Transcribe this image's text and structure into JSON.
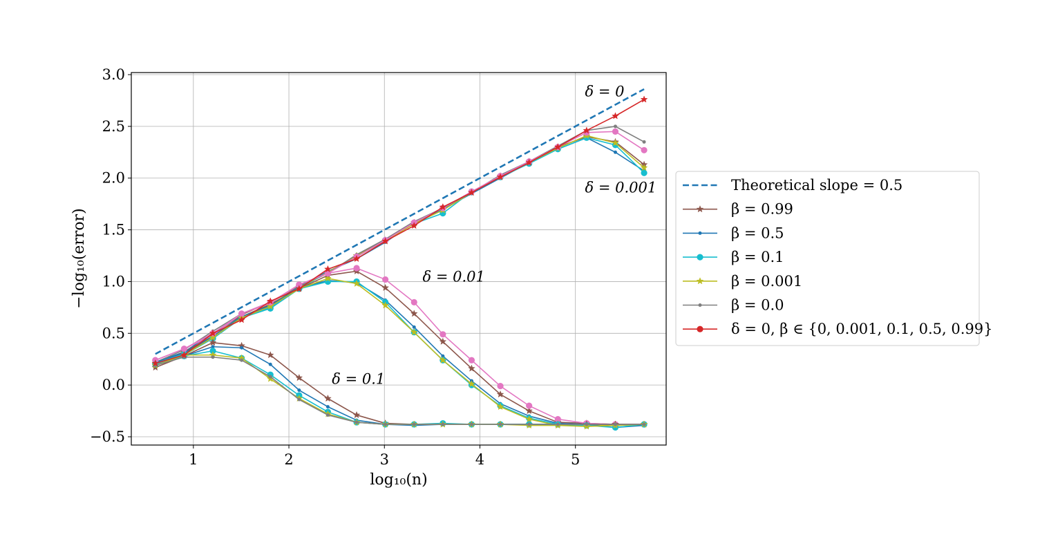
{
  "chart_data": {
    "type": "line",
    "title": "",
    "xlabel": "log₁₀(n)",
    "ylabel": "−log₁₀(error)",
    "xlim": [
      0.35,
      5.95
    ],
    "ylim": [
      -0.58,
      3.02
    ],
    "x_ticks": [
      1,
      2,
      3,
      4,
      5
    ],
    "x_tick_labels": [
      "1",
      "2",
      "3",
      "4",
      "5"
    ],
    "y_ticks": [
      -0.5,
      0.0,
      0.5,
      1.0,
      1.5,
      2.0,
      2.5,
      3.0
    ],
    "y_tick_labels": [
      "−0.5",
      "0.0",
      "0.5",
      "1.0",
      "1.5",
      "2.0",
      "2.5",
      "3.0"
    ],
    "grid": true,
    "legend_position": "right-outside",
    "x": [
      0.602,
      0.903,
      1.204,
      1.505,
      1.806,
      2.107,
      2.408,
      2.709,
      3.01,
      3.311,
      3.612,
      3.913,
      4.214,
      4.515,
      4.816,
      5.117,
      5.418,
      5.719
    ],
    "theoretical": {
      "name": "Theoretical slope = 0.5",
      "color": "#1f77b4",
      "x": [
        0.602,
        5.719
      ],
      "values": [
        0.3,
        2.86
      ]
    },
    "legend": [
      {
        "label": "Theoretical slope = 0.5",
        "color": "#1f77b4",
        "style": "dashed",
        "marker": "none"
      },
      {
        "label": "β = 0.99",
        "color": "#8c564b",
        "style": "solid",
        "marker": "star"
      },
      {
        "label": "β = 0.5",
        "color": "#1f77b4",
        "style": "solid",
        "marker": "dot"
      },
      {
        "label": "β = 0.1",
        "color": "#17becf",
        "style": "solid",
        "marker": "circle"
      },
      {
        "label": "β = 0.001",
        "color": "#bcbd22",
        "style": "solid",
        "marker": "star"
      },
      {
        "label": "β = 0.0",
        "color": "#7f7f7f",
        "style": "solid",
        "marker": "dot"
      },
      {
        "label": "δ = 0,  β ∈ {0, 0.001, 0.1, 0.5, 0.99}",
        "color": "#d62728",
        "style": "solid",
        "marker": "circle"
      }
    ],
    "annotations": [
      {
        "text": "δ = 0",
        "x": 5.1,
        "y": 2.79
      },
      {
        "text": "δ = 0.001",
        "x": 5.1,
        "y": 1.86
      },
      {
        "text": "δ = 0.01",
        "x": 3.4,
        "y": 1.0
      },
      {
        "text": "δ = 0.1",
        "x": 2.45,
        "y": 0.01
      }
    ],
    "series": [
      {
        "group": "δ = 0.001",
        "name": "β = 0.99",
        "color": "#8c564b",
        "marker": "star",
        "values": [
          0.2,
          0.3,
          0.47,
          0.68,
          0.8,
          0.95,
          1.08,
          1.25,
          1.4,
          1.57,
          1.7,
          1.86,
          2.02,
          2.16,
          2.3,
          2.4,
          2.35,
          2.13
        ]
      },
      {
        "group": "δ = 0.001",
        "name": "β = 0.5",
        "color": "#1f77b4",
        "marker": "dot",
        "values": [
          0.22,
          0.32,
          0.5,
          0.66,
          0.77,
          0.95,
          1.1,
          1.22,
          1.38,
          1.57,
          1.7,
          1.85,
          2.0,
          2.15,
          2.28,
          2.39,
          2.25,
          2.07
        ]
      },
      {
        "group": "δ = 0.001",
        "name": "β = 0.1",
        "color": "#17becf",
        "marker": "circle",
        "values": [
          0.21,
          0.29,
          0.45,
          0.65,
          0.74,
          0.93,
          1.09,
          1.24,
          1.4,
          1.56,
          1.66,
          1.87,
          2.01,
          2.14,
          2.28,
          2.39,
          2.32,
          2.05
        ]
      },
      {
        "group": "δ = 0.001",
        "name": "β = 0.001",
        "color": "#bcbd22",
        "marker": "star",
        "values": [
          0.2,
          0.31,
          0.48,
          0.66,
          0.78,
          0.94,
          1.09,
          1.25,
          1.39,
          1.56,
          1.69,
          1.86,
          2.01,
          2.15,
          2.29,
          2.41,
          2.34,
          2.1
        ]
      },
      {
        "group": "δ = 0.001",
        "name": "β = 0.0",
        "color": "#7f7f7f",
        "marker": "dot",
        "values": [
          0.22,
          0.34,
          0.52,
          0.69,
          0.8,
          0.96,
          1.08,
          1.26,
          1.41,
          1.58,
          1.71,
          1.86,
          2.03,
          2.16,
          2.31,
          2.46,
          2.5,
          2.35
        ]
      },
      {
        "group": "δ = 0.001",
        "name": "",
        "color": "#e377c2",
        "marker": "circle",
        "values": [
          0.24,
          0.35,
          0.48,
          0.69,
          0.79,
          0.97,
          1.08,
          1.24,
          1.4,
          1.57,
          1.71,
          1.87,
          2.02,
          2.16,
          2.3,
          2.44,
          2.45,
          2.27
        ]
      },
      {
        "group": "δ = 0.01",
        "name": "β = 0.99",
        "color": "#8c564b",
        "marker": "star",
        "values": [
          0.19,
          0.32,
          0.47,
          0.66,
          0.78,
          0.93,
          1.06,
          1.1,
          0.94,
          0.69,
          0.42,
          0.16,
          -0.09,
          -0.25,
          -0.36,
          -0.37,
          -0.38,
          -0.38
        ]
      },
      {
        "group": "δ = 0.01",
        "name": "β = 0.5",
        "color": "#1f77b4",
        "marker": "dot",
        "values": [
          0.22,
          0.31,
          0.47,
          0.66,
          0.77,
          0.94,
          1.01,
          0.99,
          0.82,
          0.56,
          0.28,
          0.04,
          -0.18,
          -0.3,
          -0.37,
          -0.38,
          -0.38,
          -0.38
        ]
      },
      {
        "group": "δ = 0.01",
        "name": "β = 0.1",
        "color": "#17becf",
        "marker": "circle",
        "values": [
          0.21,
          0.3,
          0.45,
          0.65,
          0.75,
          0.93,
          1.0,
          1.0,
          0.8,
          0.51,
          0.24,
          0.0,
          -0.2,
          -0.32,
          -0.38,
          -0.39,
          -0.39,
          -0.38
        ]
      },
      {
        "group": "δ = 0.01",
        "name": "β = 0.001",
        "color": "#bcbd22",
        "marker": "star",
        "values": [
          0.2,
          0.29,
          0.46,
          0.65,
          0.76,
          0.93,
          1.03,
          0.98,
          0.77,
          0.51,
          0.24,
          0.01,
          -0.21,
          -0.33,
          -0.39,
          -0.39,
          -0.39,
          -0.38
        ]
      },
      {
        "group": "δ = 0.01",
        "name": "",
        "color": "#e377c2",
        "marker": "circle",
        "values": [
          0.24,
          0.35,
          0.5,
          0.69,
          0.8,
          0.97,
          1.08,
          1.13,
          1.02,
          0.8,
          0.49,
          0.24,
          -0.01,
          -0.2,
          -0.33,
          -0.37,
          -0.38,
          -0.38
        ]
      },
      {
        "group": "δ = 0.1",
        "name": "β = 0.99",
        "color": "#8c564b",
        "marker": "star",
        "values": [
          0.17,
          0.28,
          0.41,
          0.38,
          0.29,
          0.07,
          -0.13,
          -0.29,
          -0.37,
          -0.38,
          -0.38,
          -0.38,
          -0.38,
          -0.38,
          -0.38,
          -0.38,
          -0.38,
          -0.38
        ]
      },
      {
        "group": "δ = 0.1",
        "name": "β = 0.5",
        "color": "#1f77b4",
        "marker": "dot",
        "values": [
          0.21,
          0.28,
          0.37,
          0.36,
          0.2,
          -0.05,
          -0.21,
          -0.34,
          -0.38,
          -0.39,
          -0.38,
          -0.38,
          -0.38,
          -0.38,
          -0.38,
          -0.38,
          -0.41,
          -0.39
        ]
      },
      {
        "group": "δ = 0.1",
        "name": "β = 0.1",
        "color": "#17becf",
        "marker": "circle",
        "values": [
          0.2,
          0.28,
          0.33,
          0.26,
          0.1,
          -0.1,
          -0.26,
          -0.36,
          -0.38,
          -0.38,
          -0.37,
          -0.38,
          -0.38,
          -0.38,
          -0.38,
          -0.39,
          -0.41,
          -0.38
        ]
      },
      {
        "group": "δ = 0.1",
        "name": "β = 0.001",
        "color": "#bcbd22",
        "marker": "star",
        "values": [
          0.19,
          0.29,
          0.29,
          0.26,
          0.06,
          -0.13,
          -0.28,
          -0.36,
          -0.38,
          -0.38,
          -0.38,
          -0.38,
          -0.38,
          -0.39,
          -0.39,
          -0.4,
          -0.39,
          -0.38
        ]
      },
      {
        "group": "δ = 0.1",
        "name": "β = 0.0",
        "color": "#7f7f7f",
        "marker": "dot",
        "values": [
          0.19,
          0.27,
          0.27,
          0.24,
          0.08,
          -0.14,
          -0.29,
          -0.36,
          -0.38,
          -0.38,
          -0.38,
          -0.38,
          -0.38,
          -0.38,
          -0.38,
          -0.38,
          -0.38,
          -0.38
        ]
      },
      {
        "group": "δ = 0",
        "name": "δ = 0,  β ∈ {0, 0.001, 0.1, 0.5, 0.99}",
        "color": "#d62728",
        "marker": "star",
        "values": [
          0.21,
          0.29,
          0.5,
          0.63,
          0.81,
          0.93,
          1.12,
          1.22,
          1.39,
          1.54,
          1.72,
          1.86,
          2.01,
          2.15,
          2.3,
          2.46,
          2.6,
          2.76
        ]
      }
    ]
  }
}
